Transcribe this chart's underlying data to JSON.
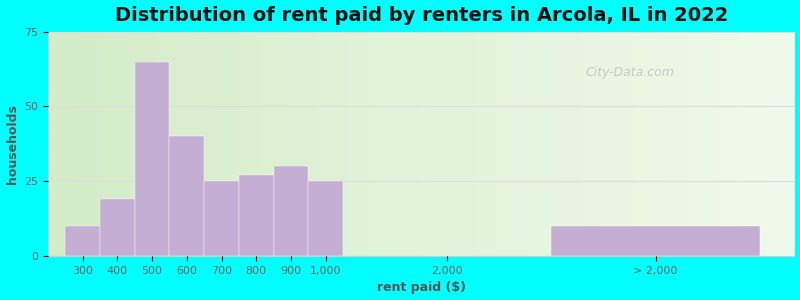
{
  "title": "Distribution of rent paid by renters in Arcola, IL in 2022",
  "xlabel": "rent paid ($)",
  "ylabel": "households",
  "bar_color": "#c4aed4",
  "background_outer": "#00ffff",
  "background_inner_left": "#d4ecc8",
  "background_inner_right": "#f0f8ee",
  "categories": [
    "300",
    "400",
    "500",
    "600",
    "700",
    "800",
    "900",
    "1,000",
    "2,000",
    "> 2,000"
  ],
  "values": [
    10,
    19,
    65,
    40,
    25,
    27,
    30,
    25,
    0,
    10
  ],
  "ylim": [
    0,
    75
  ],
  "yticks": [
    0,
    25,
    50,
    75
  ],
  "figsize": [
    8.0,
    3.0
  ],
  "dpi": 100,
  "watermark": "City-Data.com",
  "title_fontsize": 14,
  "axis_fontsize": 9,
  "tick_fontsize": 8
}
